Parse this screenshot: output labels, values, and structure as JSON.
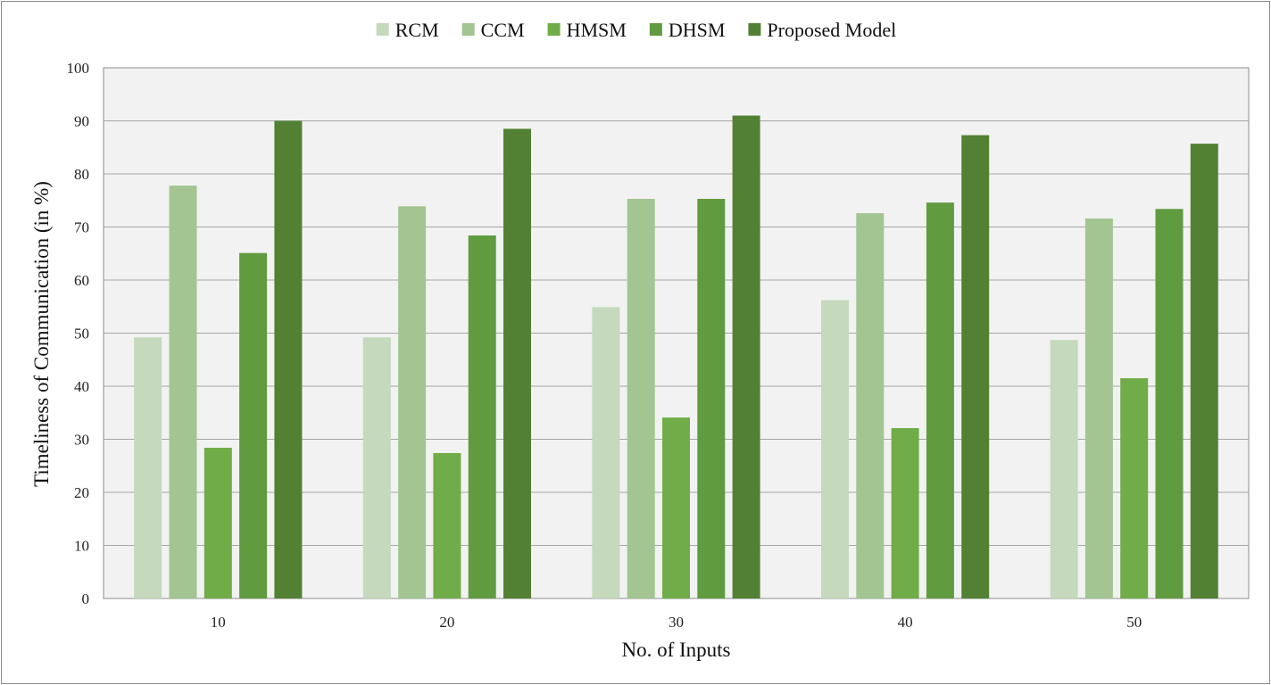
{
  "chart_data": {
    "type": "bar",
    "categories": [
      "10",
      "20",
      "30",
      "40",
      "50"
    ],
    "series": [
      {
        "name": "RCM",
        "color": "#c5d9bd",
        "values": [
          49.2,
          49.2,
          54.9,
          56.2,
          48.7
        ]
      },
      {
        "name": "CCM",
        "color": "#a3c591",
        "values": [
          77.8,
          73.9,
          75.3,
          72.6,
          71.6
        ]
      },
      {
        "name": "HMSM",
        "color": "#70ac47",
        "values": [
          28.4,
          27.4,
          34.1,
          32.1,
          41.5
        ]
      },
      {
        "name": "DHSM",
        "color": "#609b3f",
        "values": [
          65.1,
          68.4,
          75.3,
          74.6,
          73.4
        ]
      },
      {
        "name": "Proposed Model",
        "color": "#538134",
        "values": [
          90.0,
          88.5,
          91.0,
          87.3,
          85.7
        ]
      }
    ],
    "xlabel": "No. of Inputs",
    "ylabel": "Timeliness of Communication  (in %)",
    "ylim": [
      0,
      100
    ],
    "yticks": [
      "0",
      "10",
      "20",
      "30",
      "40",
      "50",
      "60",
      "70",
      "80",
      "90",
      "100"
    ],
    "grid": true,
    "legend_position": "top",
    "plot_background": "#f2f2f2",
    "gridline_color": "#a6a6a6"
  }
}
